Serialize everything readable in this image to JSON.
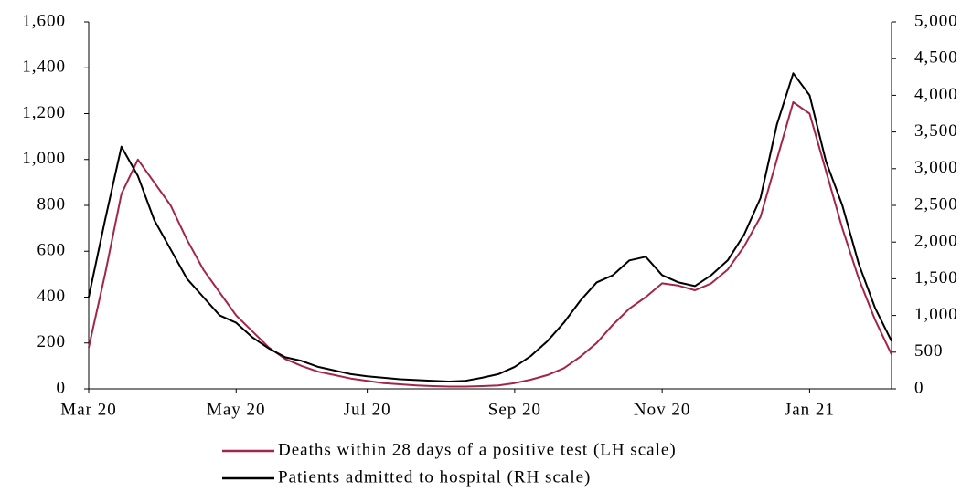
{
  "chart_data": {
    "type": "line",
    "categories": [
      "Mar 20",
      null,
      null,
      null,
      null,
      null,
      null,
      null,
      null,
      "May 20",
      null,
      null,
      null,
      null,
      null,
      null,
      null,
      "Jul 20",
      null,
      null,
      null,
      null,
      null,
      null,
      null,
      null,
      "Sep 20",
      null,
      null,
      null,
      null,
      null,
      null,
      null,
      null,
      "Nov 20",
      null,
      null,
      null,
      null,
      null,
      null,
      null,
      null,
      "Jan 21",
      null,
      null,
      null,
      null,
      null
    ],
    "series": [
      {
        "name": "Deaths within 28 days of a positive test (LH scale)",
        "color": "#a4254a",
        "values": [
          180,
          500,
          850,
          1000,
          900,
          800,
          650,
          520,
          420,
          320,
          250,
          180,
          130,
          100,
          75,
          60,
          45,
          35,
          25,
          20,
          15,
          12,
          10,
          10,
          12,
          15,
          25,
          40,
          60,
          90,
          140,
          200,
          280,
          350,
          400,
          460,
          450,
          430,
          460,
          520,
          620,
          750,
          1000,
          1250,
          1200,
          950,
          700,
          480,
          300,
          150
        ]
      },
      {
        "name": "Patients admitted to hospital (RH scale)",
        "color": "#000000",
        "axis": "y2",
        "values": [
          1250,
          2300,
          3300,
          2900,
          2300,
          1900,
          1500,
          1250,
          1000,
          900,
          700,
          550,
          430,
          380,
          300,
          250,
          200,
          170,
          150,
          130,
          120,
          110,
          100,
          110,
          150,
          200,
          300,
          450,
          650,
          900,
          1200,
          1450,
          1550,
          1750,
          1800,
          1550,
          1450,
          1400,
          1550,
          1750,
          2100,
          2600,
          3600,
          4300,
          4000,
          3100,
          2500,
          1700,
          1100,
          650
        ]
      }
    ],
    "ylim": [
      0,
      1600
    ],
    "yticks": [
      0,
      200,
      400,
      600,
      800,
      {
        "value": 1000,
        "label": "1,000"
      },
      {
        "value": 1200,
        "label": "1,200"
      },
      {
        "value": 1400,
        "label": "1,400"
      },
      {
        "value": 1600,
        "label": "1,600"
      }
    ],
    "y2lim": [
      0,
      5000
    ],
    "y2ticks": [
      0,
      500,
      {
        "value": 1000,
        "label": "1,000"
      },
      {
        "value": 1500,
        "label": "1,500"
      },
      {
        "value": 2000,
        "label": "2,000"
      },
      {
        "value": 2500,
        "label": "2,500"
      },
      {
        "value": 3000,
        "label": "3,000"
      },
      {
        "value": 3500,
        "label": "3,500"
      },
      {
        "value": 4000,
        "label": "4,000"
      },
      {
        "value": 4500,
        "label": "4,500"
      },
      {
        "value": 5000,
        "label": "5,000"
      }
    ],
    "grid": false,
    "legend": "bottom"
  }
}
